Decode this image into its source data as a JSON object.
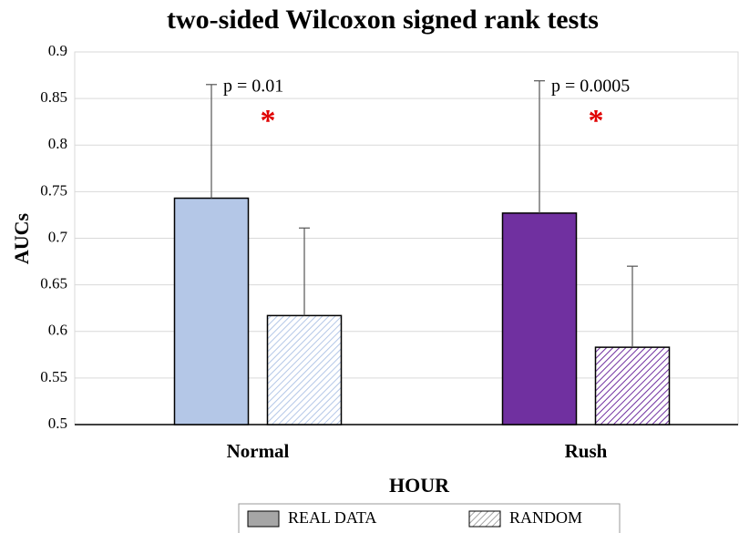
{
  "chart_data": {
    "type": "bar",
    "title": "two-sided Wilcoxon signed rank tests",
    "x_label": "HOUR",
    "y_label": "AUCs",
    "categories": [
      "Normal",
      "Rush"
    ],
    "series": [
      {
        "name": "REAL DATA",
        "color": "#a6a6a6",
        "hatch": false,
        "point_colors": [
          "#b4c7e7",
          "#7030a0"
        ],
        "values": [
          0.743,
          0.727
        ],
        "errors": [
          0.122,
          0.142
        ]
      },
      {
        "name": "RANDOM",
        "color": "#a6a6a6",
        "hatch": true,
        "point_colors": [
          "#b4c7e7",
          "#7030a0"
        ],
        "values": [
          0.617,
          0.583
        ],
        "errors": [
          0.094,
          0.087
        ]
      }
    ],
    "annotations": [
      {
        "category": "Normal",
        "text": "p = 0.01",
        "marker": "*"
      },
      {
        "category": "Rush",
        "text": "p = 0.0005",
        "marker": "*"
      }
    ],
    "ylim": [
      0.5,
      0.9
    ],
    "yticks": [
      0.5,
      0.55,
      0.6,
      0.65,
      0.7,
      0.75,
      0.8,
      0.85,
      0.9
    ],
    "grid": true
  }
}
